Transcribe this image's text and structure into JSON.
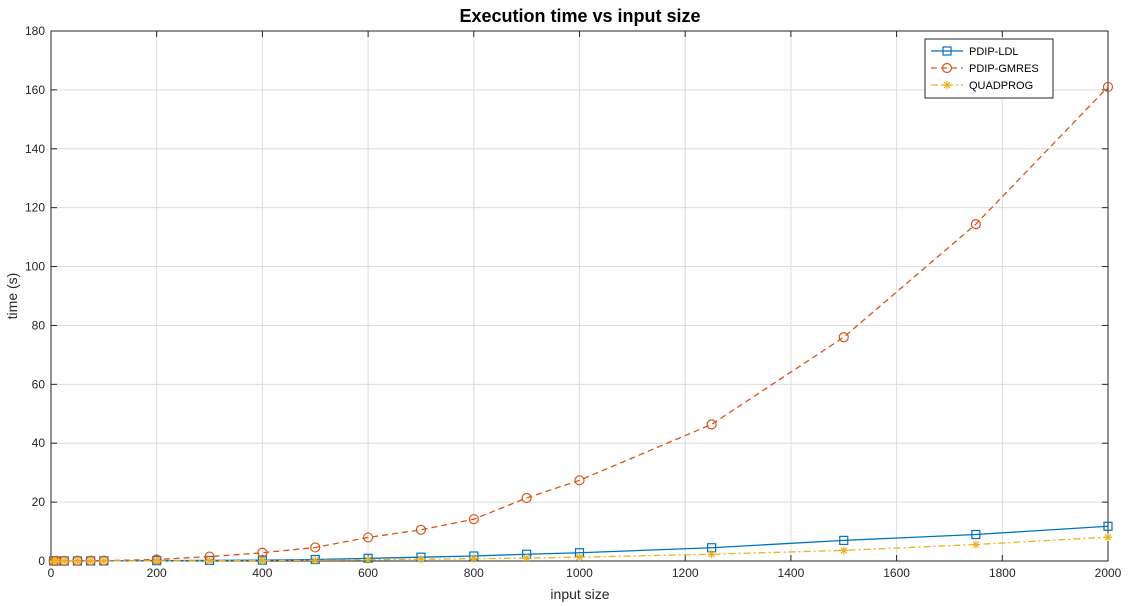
{
  "chart_data": {
    "type": "line",
    "title": "Execution time vs input size",
    "xlabel": "input size",
    "ylabel": "time (s)",
    "xlim": [
      0,
      2000
    ],
    "ylim": [
      0,
      180
    ],
    "xticks": [
      0,
      200,
      400,
      600,
      800,
      1000,
      1200,
      1400,
      1600,
      1800,
      2000
    ],
    "yticks": [
      0,
      20,
      40,
      60,
      80,
      100,
      120,
      140,
      160,
      180
    ],
    "grid": true,
    "legend_position": "top-right",
    "series": [
      {
        "name": "PDIP-LDL",
        "color": "#0072BD",
        "line_style": "solid",
        "marker": "square",
        "x": [
          5,
          10,
          25,
          50,
          75,
          100,
          200,
          300,
          400,
          500,
          600,
          700,
          800,
          900,
          1000,
          1250,
          1500,
          1750,
          2000
        ],
        "y": [
          0.01,
          0.01,
          0.01,
          0.01,
          0.02,
          0.03,
          0.1,
          0.2,
          0.3,
          0.5,
          0.9,
          1.3,
          1.7,
          2.3,
          2.8,
          4.5,
          7.0,
          9.0,
          11.8
        ]
      },
      {
        "name": "PDIP-GMRES",
        "color": "#D95319",
        "line_style": "dashed",
        "marker": "circle",
        "x": [
          5,
          10,
          25,
          50,
          75,
          100,
          200,
          300,
          400,
          500,
          600,
          700,
          800,
          900,
          1000,
          1250,
          1500,
          1750,
          2000
        ],
        "y": [
          0.02,
          0.03,
          0.05,
          0.08,
          0.1,
          0.15,
          0.5,
          1.5,
          2.8,
          4.6,
          8.0,
          10.6,
          14.2,
          21.4,
          27.4,
          46.4,
          76.0,
          114.4,
          161.0
        ]
      },
      {
        "name": "QUADPROG",
        "color": "#EDB120",
        "line_style": "dashdot",
        "marker": "asterisk",
        "x": [
          5,
          10,
          25,
          50,
          75,
          100,
          200,
          300,
          400,
          500,
          600,
          700,
          800,
          900,
          1000,
          1250,
          1500,
          1750,
          2000
        ],
        "y": [
          0.01,
          0.01,
          0.01,
          0.02,
          0.02,
          0.03,
          0.05,
          0.1,
          0.15,
          0.25,
          0.4,
          0.6,
          0.8,
          1.0,
          1.3,
          2.3,
          3.6,
          5.6,
          8.1
        ]
      }
    ]
  }
}
